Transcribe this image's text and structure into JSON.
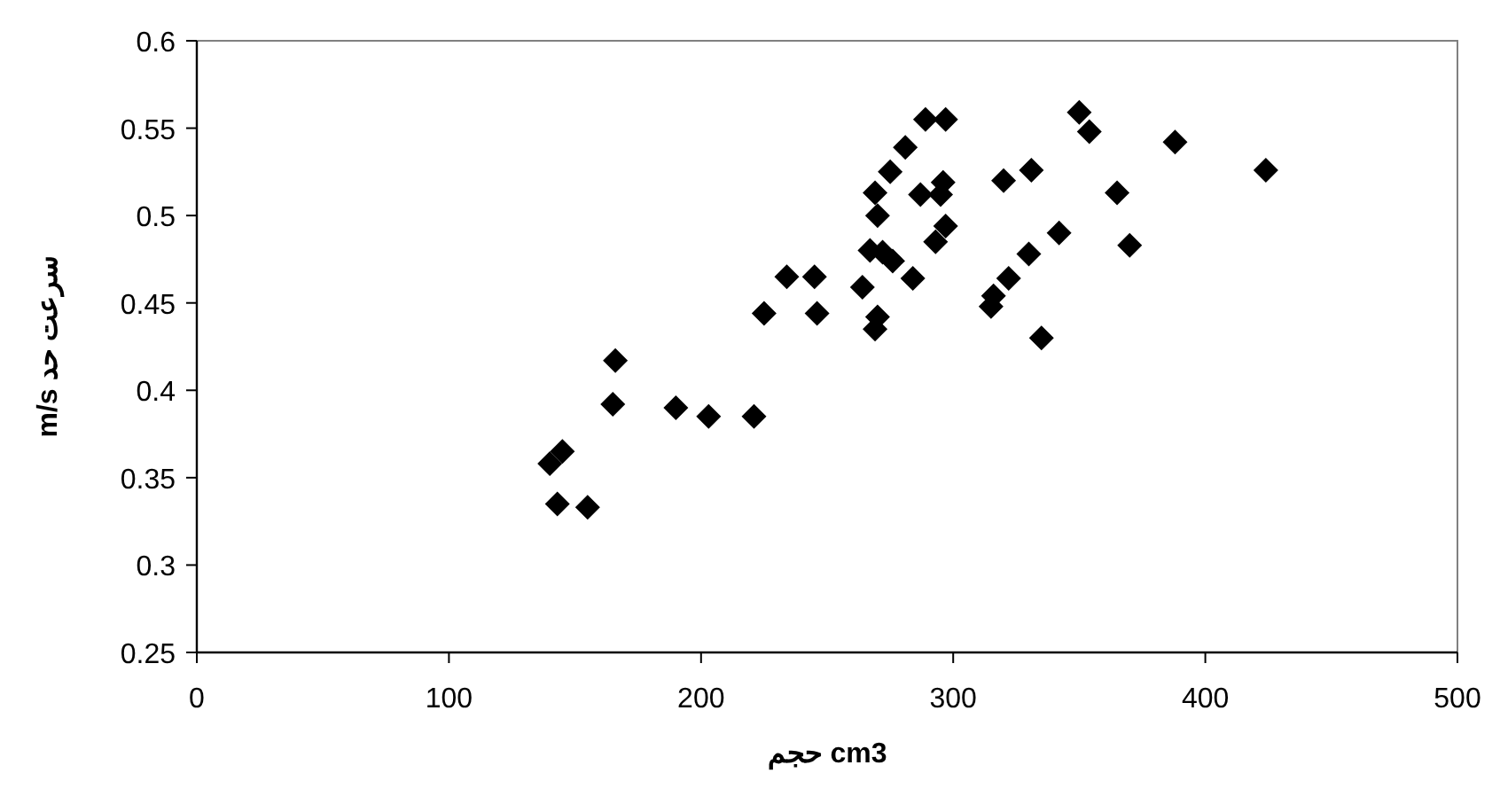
{
  "chart_data": {
    "type": "scatter",
    "xlabel": "حجم cm3",
    "ylabel": "m/s سرعت حد",
    "x": [
      140,
      143,
      145,
      155,
      165,
      166,
      190,
      203,
      221,
      225,
      234,
      245,
      246,
      264,
      267,
      269,
      269,
      270,
      270,
      272,
      275,
      276,
      281,
      284,
      287,
      289,
      293,
      295,
      296,
      297,
      297,
      315,
      316,
      320,
      322,
      330,
      331,
      335,
      342,
      350,
      354,
      365,
      370,
      388,
      424
    ],
    "values": [
      0.358,
      0.335,
      0.365,
      0.333,
      0.392,
      0.417,
      0.39,
      0.385,
      0.385,
      0.444,
      0.465,
      0.465,
      0.444,
      0.459,
      0.48,
      0.435,
      0.513,
      0.442,
      0.5,
      0.479,
      0.525,
      0.474,
      0.539,
      0.464,
      0.512,
      0.555,
      0.485,
      0.512,
      0.519,
      0.494,
      0.555,
      0.448,
      0.454,
      0.52,
      0.464,
      0.478,
      0.526,
      0.43,
      0.49,
      0.559,
      0.548,
      0.513,
      0.483,
      0.542,
      0.526
    ],
    "color": "#000000",
    "marker": "diamond",
    "xlim": [
      0,
      500
    ],
    "xticks": [
      0,
      100,
      200,
      300,
      400,
      500
    ],
    "ylim": [
      0.25,
      0.6
    ],
    "yticks": [
      0.25,
      0.3,
      0.35,
      0.4,
      0.45,
      0.5,
      0.55,
      0.6
    ]
  }
}
